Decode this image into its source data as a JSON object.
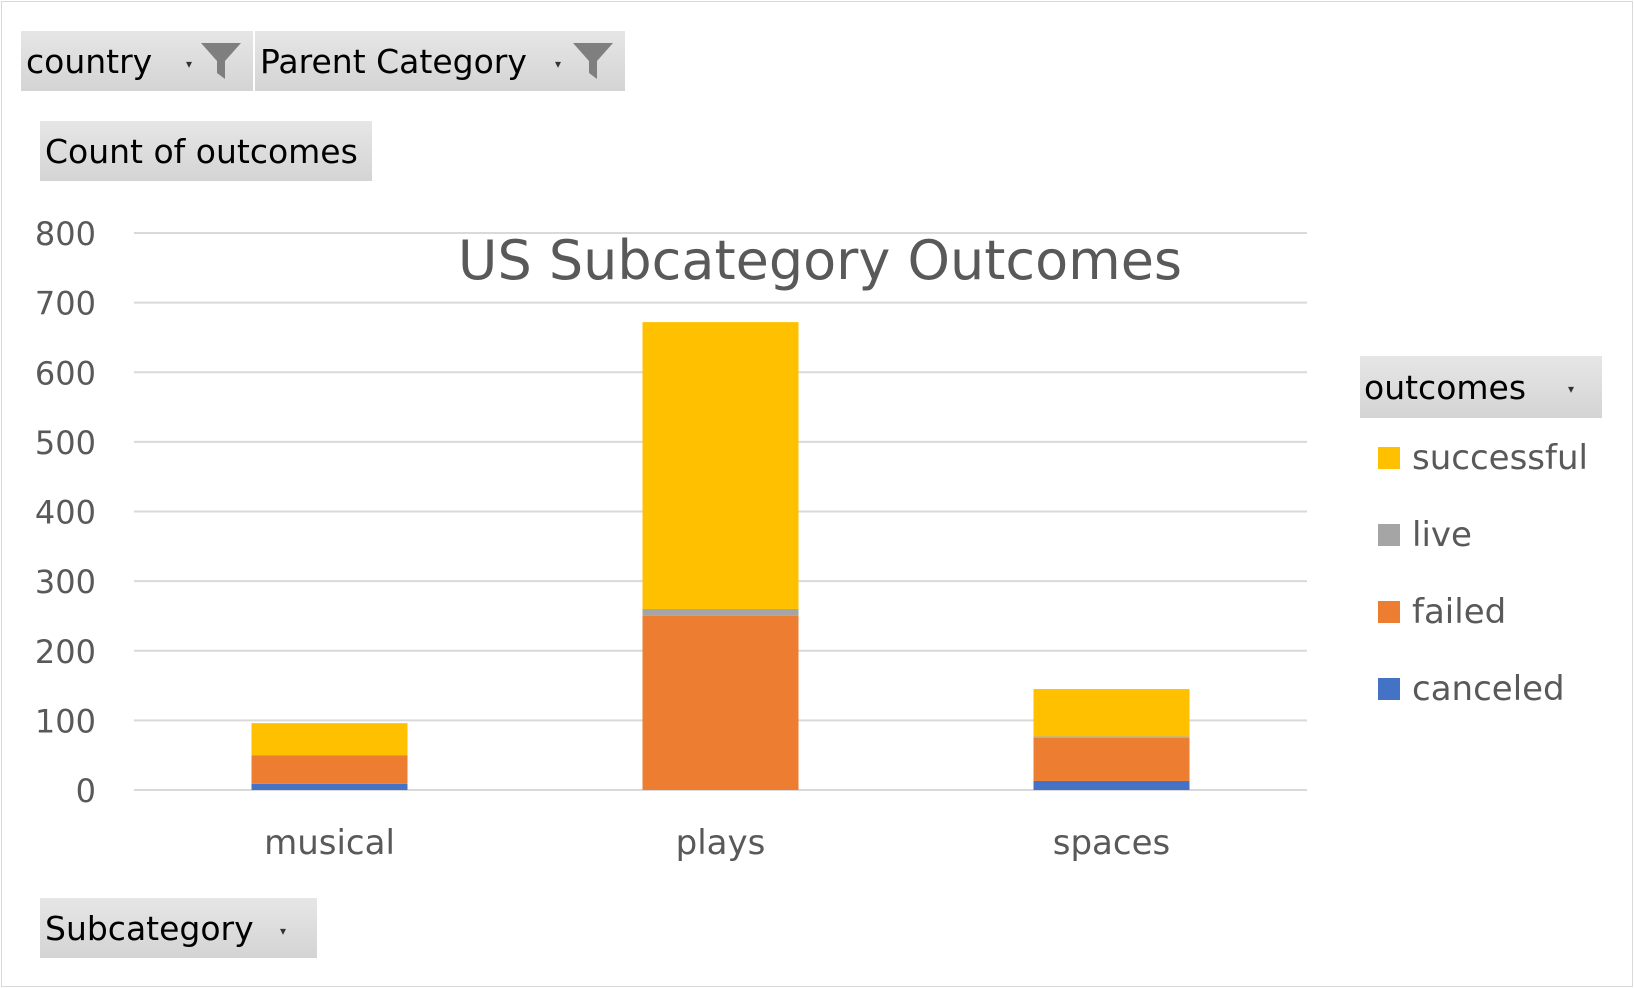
{
  "filters": {
    "country_label": "country",
    "parent_category_label": "Parent Category",
    "values_label": "Count of outcomes",
    "axis_field_label": "Subcategory",
    "legend_field_label": "outcomes"
  },
  "icons": {
    "dropdown": "chevron-down-icon",
    "filter": "funnel-filter-icon"
  },
  "chart_data": {
    "type": "bar",
    "stacked": true,
    "title": "US Subcategory Outcomes",
    "categories": [
      "musical",
      "plays",
      "spaces"
    ],
    "series": [
      {
        "name": "canceled",
        "color": "#4472C4",
        "values": [
          9,
          0,
          13
        ]
      },
      {
        "name": "failed",
        "color": "#ED7D31",
        "values": [
          41,
          250,
          62
        ]
      },
      {
        "name": "live",
        "color": "#A5A5A5",
        "values": [
          0,
          10,
          2
        ]
      },
      {
        "name": "successful",
        "color": "#FFC000",
        "values": [
          46,
          412,
          68
        ]
      }
    ],
    "ylim": [
      0,
      800
    ],
    "yticks": [
      "0",
      "100",
      "200",
      "300",
      "400",
      "500",
      "600",
      "700",
      "800"
    ],
    "grid": true,
    "legend_position": "right"
  }
}
